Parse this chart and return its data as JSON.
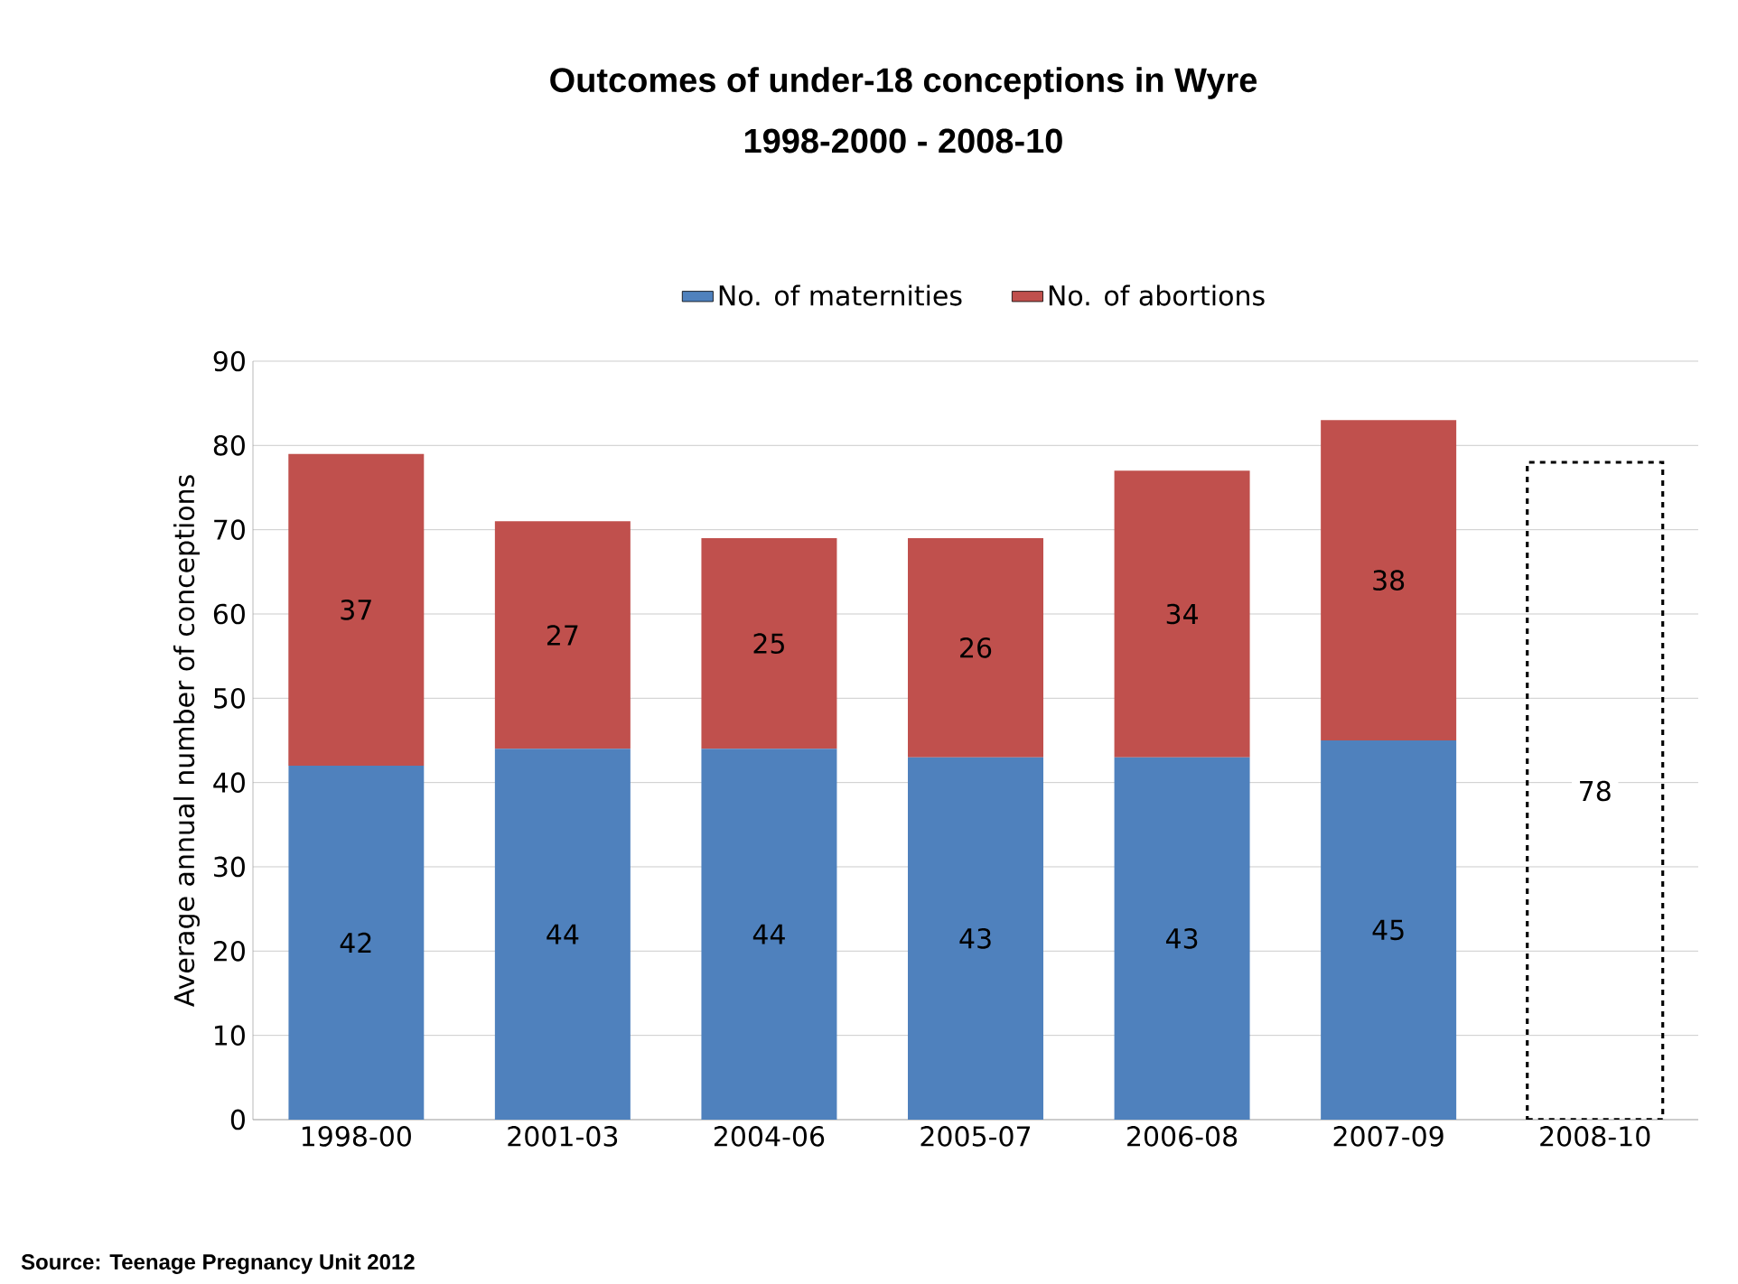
{
  "chart_data": {
    "type": "bar",
    "stacked": true,
    "title": "Outcomes of under-18 conceptions in Wyre",
    "subtitle": "1998-2000 - 2008-10",
    "categories": [
      "1998-00",
      "2001-03",
      "2004-06",
      "2005-07",
      "2006-08",
      "2007-09",
      "2008-10"
    ],
    "series": [
      {
        "name": "No. of maternities",
        "color": "#4f81bd",
        "values": [
          42,
          44,
          44,
          43,
          43,
          45,
          null
        ]
      },
      {
        "name": "No. of abortions",
        "color": "#c0504d",
        "values": [
          37,
          27,
          25,
          26,
          34,
          38,
          null
        ]
      },
      {
        "color": "#000000",
        "line_style": "dashed",
        "values": [
          null,
          null,
          null,
          null,
          null,
          null,
          78
        ]
      }
    ],
    "ylabel": "Average annual number of conceptions",
    "ylim": [
      0,
      90
    ],
    "yticks": [
      0,
      10,
      20,
      30,
      40,
      50,
      60,
      70,
      80,
      90
    ],
    "grid": "y",
    "legend": "top",
    "data_labels": true,
    "annotations": [
      "Source: Teenage Pregnancy Unit 2012"
    ]
  }
}
